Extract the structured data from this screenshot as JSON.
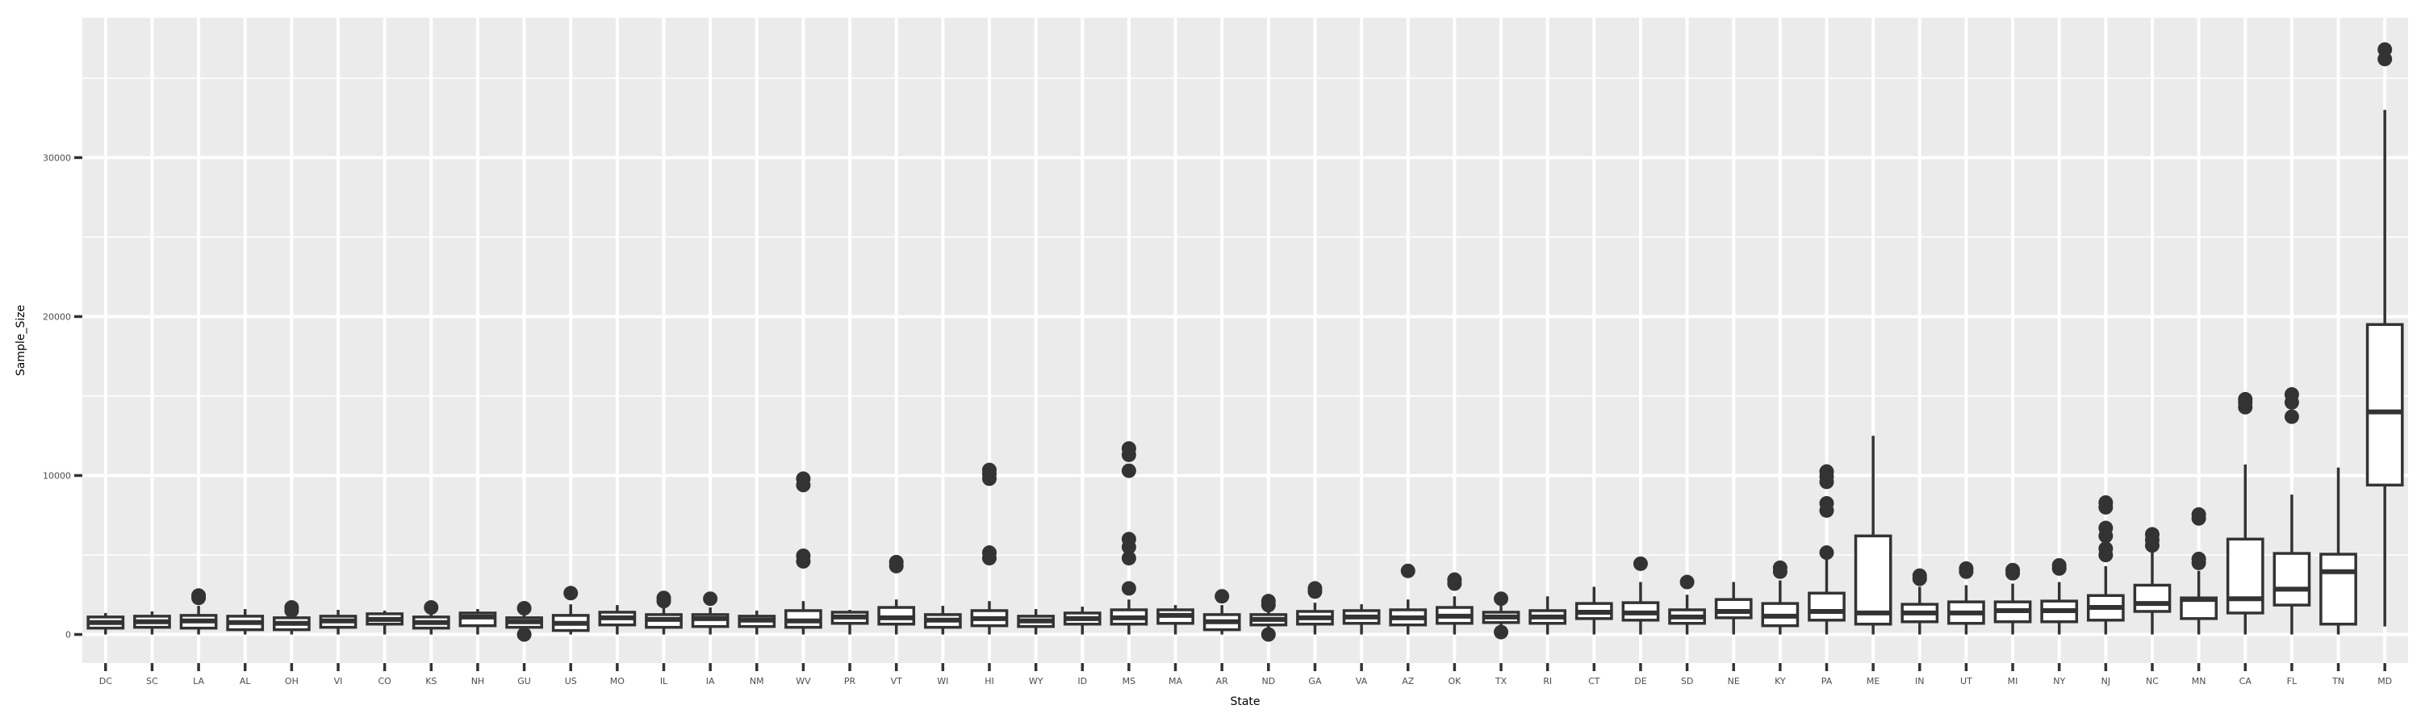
{
  "chart_data": {
    "type": "boxplot",
    "xlabel": "State",
    "ylabel": "Sample_Size",
    "ylim": [
      -1800,
      38800
    ],
    "y_ticks": [
      0,
      10000,
      20000,
      30000
    ],
    "grid": true,
    "colors": {
      "panel": "#ebebeb",
      "grid": "#ffffff",
      "box_fill": "#ffffff",
      "box_line": "#333333",
      "text": "#4d4d4d"
    },
    "boxes": [
      {
        "state": "DC",
        "whisker_low": 0,
        "q1": 400,
        "median": 750,
        "q3": 1100,
        "whisker_high": 1350,
        "outliers": []
      },
      {
        "state": "SC",
        "whisker_low": 0,
        "q1": 450,
        "median": 800,
        "q3": 1150,
        "whisker_high": 1450,
        "outliers": []
      },
      {
        "state": "LA",
        "whisker_low": 0,
        "q1": 400,
        "median": 850,
        "q3": 1200,
        "whisker_high": 1800,
        "outliers": [
          2300,
          2450
        ]
      },
      {
        "state": "AL",
        "whisker_low": 0,
        "q1": 300,
        "median": 750,
        "q3": 1150,
        "whisker_high": 1600,
        "outliers": []
      },
      {
        "state": "OH",
        "whisker_low": 0,
        "q1": 300,
        "median": 700,
        "q3": 1050,
        "whisker_high": 1300,
        "outliers": [
          1500,
          1700
        ]
      },
      {
        "state": "VI",
        "whisker_low": 0,
        "q1": 450,
        "median": 850,
        "q3": 1150,
        "whisker_high": 1550,
        "outliers": []
      },
      {
        "state": "CO",
        "whisker_low": 0,
        "q1": 650,
        "median": 950,
        "q3": 1300,
        "whisker_high": 1500,
        "outliers": []
      },
      {
        "state": "KS",
        "whisker_low": 0,
        "q1": 400,
        "median": 750,
        "q3": 1100,
        "whisker_high": 1400,
        "outliers": [
          1700
        ]
      },
      {
        "state": "NH",
        "whisker_low": 0,
        "q1": 550,
        "median": 1100,
        "q3": 1350,
        "whisker_high": 1600,
        "outliers": []
      },
      {
        "state": "GU",
        "whisker_low": 200,
        "q1": 450,
        "median": 800,
        "q3": 1050,
        "whisker_high": 1300,
        "outliers": [
          1650,
          0
        ]
      },
      {
        "state": "US",
        "whisker_low": 0,
        "q1": 250,
        "median": 700,
        "q3": 1200,
        "whisker_high": 1900,
        "outliers": [
          2600
        ]
      },
      {
        "state": "MO",
        "whisker_low": 0,
        "q1": 600,
        "median": 1050,
        "q3": 1400,
        "whisker_high": 1850,
        "outliers": []
      },
      {
        "state": "IL",
        "whisker_low": 0,
        "q1": 450,
        "median": 950,
        "q3": 1250,
        "whisker_high": 1750,
        "outliers": [
          2100,
          2300
        ]
      },
      {
        "state": "IA",
        "whisker_low": 0,
        "q1": 500,
        "median": 1000,
        "q3": 1250,
        "whisker_high": 1700,
        "outliers": [
          2250
        ]
      },
      {
        "state": "NM",
        "whisker_low": 0,
        "q1": 500,
        "median": 900,
        "q3": 1150,
        "whisker_high": 1500,
        "outliers": []
      },
      {
        "state": "WV",
        "whisker_low": 0,
        "q1": 450,
        "median": 850,
        "q3": 1500,
        "whisker_high": 2100,
        "outliers": [
          4600,
          4950,
          9400,
          9800
        ]
      },
      {
        "state": "PR",
        "whisker_low": 0,
        "q1": 700,
        "median": 1100,
        "q3": 1400,
        "whisker_high": 1550,
        "outliers": []
      },
      {
        "state": "VT",
        "whisker_low": 0,
        "q1": 650,
        "median": 1050,
        "q3": 1700,
        "whisker_high": 2200,
        "outliers": [
          4300,
          4550
        ]
      },
      {
        "state": "WI",
        "whisker_low": 0,
        "q1": 450,
        "median": 900,
        "q3": 1250,
        "whisker_high": 1800,
        "outliers": []
      },
      {
        "state": "HI",
        "whisker_low": 0,
        "q1": 550,
        "median": 1000,
        "q3": 1500,
        "whisker_high": 2100,
        "outliers": [
          4800,
          5150,
          9800,
          10100,
          10350
        ]
      },
      {
        "state": "WY",
        "whisker_low": 0,
        "q1": 500,
        "median": 850,
        "q3": 1150,
        "whisker_high": 1600,
        "outliers": []
      },
      {
        "state": "ID",
        "whisker_low": 0,
        "q1": 650,
        "median": 1000,
        "q3": 1350,
        "whisker_high": 1750,
        "outliers": []
      },
      {
        "state": "MS",
        "whisker_low": 0,
        "q1": 650,
        "median": 1050,
        "q3": 1550,
        "whisker_high": 2200,
        "outliers": [
          2900,
          4800,
          5500,
          6000,
          10300,
          11300,
          11700
        ]
      },
      {
        "state": "MA",
        "whisker_low": 0,
        "q1": 700,
        "median": 1200,
        "q3": 1550,
        "whisker_high": 1850,
        "outliers": []
      },
      {
        "state": "AR",
        "whisker_low": 0,
        "q1": 300,
        "median": 800,
        "q3": 1250,
        "whisker_high": 1850,
        "outliers": [
          2400
        ]
      },
      {
        "state": "ND",
        "whisker_low": 0,
        "q1": 600,
        "median": 950,
        "q3": 1250,
        "whisker_high": 1600,
        "outliers": [
          0,
          1850,
          2100
        ]
      },
      {
        "state": "GA",
        "whisker_low": 0,
        "q1": 650,
        "median": 1050,
        "q3": 1450,
        "whisker_high": 2000,
        "outliers": [
          2700,
          2900
        ]
      },
      {
        "state": "VA",
        "whisker_low": 0,
        "q1": 700,
        "median": 1100,
        "q3": 1500,
        "whisker_high": 1900,
        "outliers": []
      },
      {
        "state": "AZ",
        "whisker_low": 0,
        "q1": 600,
        "median": 1050,
        "q3": 1550,
        "whisker_high": 2200,
        "outliers": [
          4000
        ]
      },
      {
        "state": "OK",
        "whisker_low": 0,
        "q1": 700,
        "median": 1150,
        "q3": 1700,
        "whisker_high": 2400,
        "outliers": [
          3200,
          3450
        ]
      },
      {
        "state": "TX",
        "whisker_low": 250,
        "q1": 750,
        "median": 1100,
        "q3": 1400,
        "whisker_high": 1800,
        "outliers": [
          2250,
          150
        ]
      },
      {
        "state": "RI",
        "whisker_low": 0,
        "q1": 700,
        "median": 1100,
        "q3": 1500,
        "whisker_high": 2400,
        "outliers": []
      },
      {
        "state": "CT",
        "whisker_low": 0,
        "q1": 1000,
        "median": 1400,
        "q3": 1950,
        "whisker_high": 3000,
        "outliers": []
      },
      {
        "state": "DE",
        "whisker_low": 0,
        "q1": 900,
        "median": 1350,
        "q3": 2000,
        "whisker_high": 3300,
        "outliers": [
          4450
        ]
      },
      {
        "state": "SD",
        "whisker_low": 0,
        "q1": 700,
        "median": 1100,
        "q3": 1550,
        "whisker_high": 2500,
        "outliers": [
          3300
        ]
      },
      {
        "state": "NE",
        "whisker_low": 0,
        "q1": 1050,
        "median": 1450,
        "q3": 2200,
        "whisker_high": 3300,
        "outliers": []
      },
      {
        "state": "KY",
        "whisker_low": 0,
        "q1": 550,
        "median": 1150,
        "q3": 1950,
        "whisker_high": 3400,
        "outliers": [
          3950,
          4200
        ]
      },
      {
        "state": "PA",
        "whisker_low": 0,
        "q1": 900,
        "median": 1450,
        "q3": 2600,
        "whisker_high": 4900,
        "outliers": [
          5150,
          7800,
          8250,
          9600,
          9950,
          10250
        ]
      },
      {
        "state": "ME",
        "whisker_low": 0,
        "q1": 650,
        "median": 1350,
        "q3": 6200,
        "whisker_high": 12500,
        "outliers": []
      },
      {
        "state": "IN",
        "whisker_low": 0,
        "q1": 800,
        "median": 1350,
        "q3": 1900,
        "whisker_high": 3000,
        "outliers": [
          3500,
          3700
        ]
      },
      {
        "state": "UT",
        "whisker_low": 0,
        "q1": 700,
        "median": 1350,
        "q3": 2050,
        "whisker_high": 3100,
        "outliers": [
          3950,
          4150
        ]
      },
      {
        "state": "MI",
        "whisker_low": 0,
        "q1": 800,
        "median": 1500,
        "q3": 2050,
        "whisker_high": 3200,
        "outliers": [
          3850,
          4050
        ]
      },
      {
        "state": "NY",
        "whisker_low": 0,
        "q1": 800,
        "median": 1500,
        "q3": 2100,
        "whisker_high": 3300,
        "outliers": [
          4150,
          4350
        ]
      },
      {
        "state": "NJ",
        "whisker_low": 0,
        "q1": 900,
        "median": 1700,
        "q3": 2450,
        "whisker_high": 4300,
        "outliers": [
          5000,
          5400,
          6200,
          6700,
          8000,
          8300
        ]
      },
      {
        "state": "NC",
        "whisker_low": 0,
        "q1": 1450,
        "median": 1950,
        "q3": 3100,
        "whisker_high": 5200,
        "outliers": [
          5600,
          5950,
          6300
        ]
      },
      {
        "state": "MN",
        "whisker_low": 0,
        "q1": 1000,
        "median": 2200,
        "q3": 2300,
        "whisker_high": 4000,
        "outliers": [
          4500,
          4750,
          7300,
          7550
        ]
      },
      {
        "state": "CA",
        "whisker_low": 0,
        "q1": 1350,
        "median": 2250,
        "q3": 6000,
        "whisker_high": 10700,
        "outliers": [
          14300,
          14600,
          14800
        ]
      },
      {
        "state": "FL",
        "whisker_low": 0,
        "q1": 1850,
        "median": 2850,
        "q3": 5100,
        "whisker_high": 8800,
        "outliers": [
          13700,
          14600,
          15100
        ]
      },
      {
        "state": "TN",
        "whisker_low": 0,
        "q1": 650,
        "median": 3950,
        "q3": 5050,
        "whisker_high": 10500,
        "outliers": []
      },
      {
        "state": "MD",
        "whisker_low": 500,
        "q1": 9400,
        "median": 14000,
        "q3": 19500,
        "whisker_high": 33000,
        "outliers": [
          36200,
          36800
        ]
      }
    ]
  }
}
